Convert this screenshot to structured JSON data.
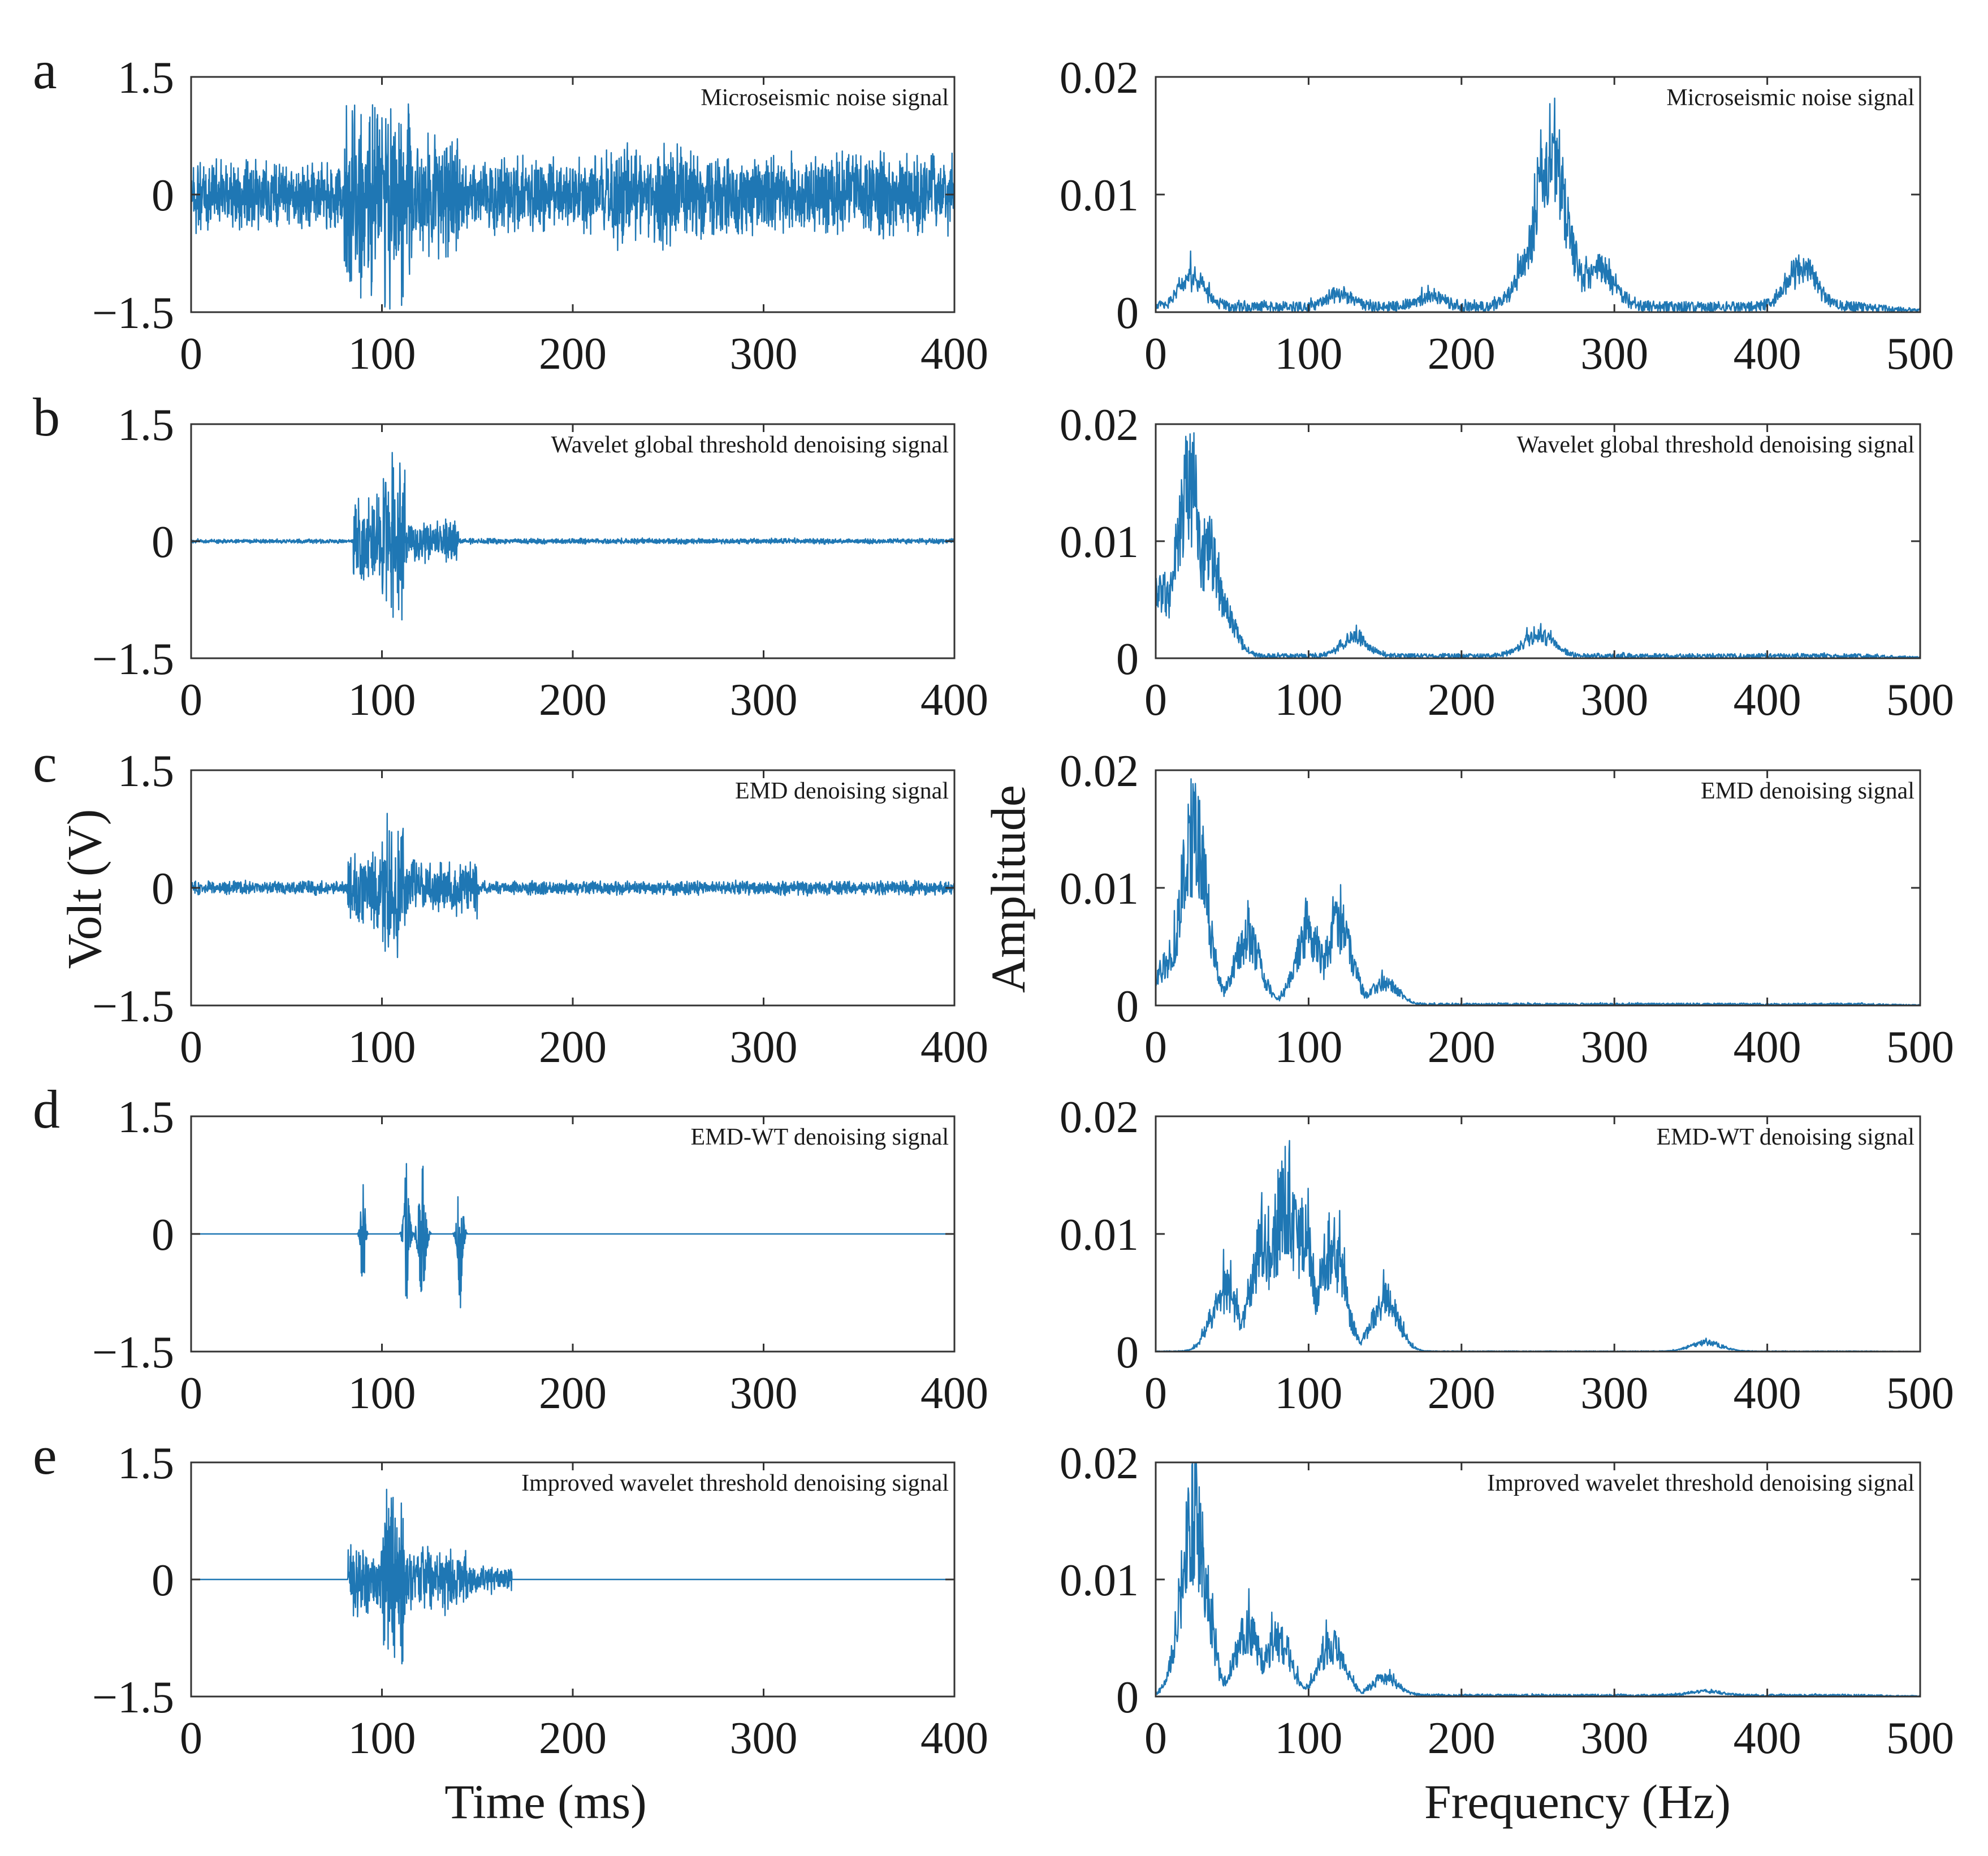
{
  "figure": {
    "time_axis_title": "Time (ms)",
    "freq_axis_title": "Frequency (Hz)",
    "volt_axis_title": "Volt (V)",
    "amp_axis_title": "Amplitude",
    "colors": {
      "trace": "#1f77b4",
      "frame": "#333333",
      "text": "#1a1a1a"
    }
  },
  "chart_data": [
    {
      "panel": "a",
      "side": "time",
      "type": "line",
      "legend": "Microseismic noise signal",
      "xlabel": "Time (ms)",
      "ylabel": "Volt (V)",
      "xlim": [
        0,
        400
      ],
      "ylim": [
        -1.5,
        1.5
      ],
      "xticks": [
        "0",
        "100",
        "200",
        "300",
        "400"
      ],
      "yticks": [
        "1.5",
        "0",
        "−1.5"
      ],
      "series": [
        {
          "name": "Microseismic noise signal",
          "kind": "noise",
          "segments": [
            {
              "x": [
                0,
                80
              ],
              "amp": 0.5
            },
            {
              "x": [
                80,
                115
              ],
              "amp": 1.5
            },
            {
              "x": [
                115,
                140
              ],
              "amp": 0.9
            },
            {
              "x": [
                140,
                220
              ],
              "amp": 0.55
            },
            {
              "x": [
                220,
                260
              ],
              "amp": 0.75
            },
            {
              "x": [
                260,
                400
              ],
              "amp": 0.6
            }
          ]
        }
      ]
    },
    {
      "panel": "a",
      "side": "freq",
      "type": "line",
      "legend": "Microseismic noise signal",
      "xlabel": "Frequency (Hz)",
      "ylabel": "Amplitude",
      "xlim": [
        0,
        500
      ],
      "ylim": [
        0,
        0.02
      ],
      "xticks": [
        "0",
        "100",
        "200",
        "300",
        "400",
        "500"
      ],
      "yticks": [
        "0.02",
        "0.01",
        "0"
      ],
      "series": [
        {
          "name": "Microseismic noise signal",
          "kind": "spectrum",
          "peaks": [
            {
              "f": 24,
              "a": 0.0035
            },
            {
              "f": 120,
              "a": 0.0015
            },
            {
              "f": 180,
              "a": 0.0012
            },
            {
              "f": 258,
              "a": 0.0185
            },
            {
              "f": 263,
              "a": 0.012
            },
            {
              "f": 248,
              "a": 0.0065
            },
            {
              "f": 290,
              "a": 0.0045
            },
            {
              "f": 423,
              "a": 0.0045
            }
          ],
          "floor": 0.0009
        }
      ]
    },
    {
      "panel": "b",
      "side": "time",
      "type": "line",
      "legend": "Wavelet global threshold denoising signal",
      "xlabel": "Time (ms)",
      "ylabel": "Volt (V)",
      "xlim": [
        0,
        400
      ],
      "ylim": [
        -1.5,
        1.5
      ],
      "xticks": [
        "0",
        "100",
        "200",
        "300",
        "400"
      ],
      "yticks": [
        "1.5",
        "0",
        "−1.5"
      ],
      "series": [
        {
          "name": "Wavelet global threshold denoising signal",
          "kind": "noise",
          "segments": [
            {
              "x": [
                0,
                85
              ],
              "amp": 0.03
            },
            {
              "x": [
                85,
                100
              ],
              "amp": 0.65
            },
            {
              "x": [
                100,
                112
              ],
              "amp": 1.2
            },
            {
              "x": [
                112,
                140
              ],
              "amp": 0.3
            },
            {
              "x": [
                140,
                400
              ],
              "amp": 0.04
            }
          ]
        }
      ]
    },
    {
      "panel": "b",
      "side": "freq",
      "type": "line",
      "legend": "Wavelet global threshold denoising signal",
      "xlabel": "Frequency (Hz)",
      "ylabel": "Amplitude",
      "xlim": [
        0,
        500
      ],
      "ylim": [
        0,
        0.02
      ],
      "xticks": [
        "0",
        "100",
        "200",
        "300",
        "400",
        "500"
      ],
      "yticks": [
        "0.02",
        "0.01",
        "0"
      ],
      "series": [
        {
          "name": "Wavelet global threshold denoising signal",
          "kind": "spectrum",
          "peaks": [
            {
              "f": 22,
              "a": 0.0195
            },
            {
              "f": 35,
              "a": 0.012
            },
            {
              "f": 42,
              "a": 0.0065
            },
            {
              "f": 4,
              "a": 0.0075
            },
            {
              "f": 130,
              "a": 0.0022
            },
            {
              "f": 250,
              "a": 0.0024
            }
          ],
          "floor": 0.0004
        }
      ]
    },
    {
      "panel": "c",
      "side": "time",
      "type": "line",
      "legend": "EMD denoising signal",
      "xlabel": "Time (ms)",
      "ylabel": "Volt (V)",
      "xlim": [
        0,
        400
      ],
      "ylim": [
        -1.5,
        1.5
      ],
      "xticks": [
        "0",
        "100",
        "200",
        "300",
        "400"
      ],
      "yticks": [
        "1.5",
        "0",
        "−1.5"
      ],
      "series": [
        {
          "name": "EMD denoising signal",
          "kind": "noise",
          "segments": [
            {
              "x": [
                0,
                82
              ],
              "amp": 0.1
            },
            {
              "x": [
                82,
                100
              ],
              "amp": 0.6
            },
            {
              "x": [
                100,
                112
              ],
              "amp": 1.1
            },
            {
              "x": [
                112,
                150
              ],
              "amp": 0.4
            },
            {
              "x": [
                150,
                400
              ],
              "amp": 0.1
            }
          ]
        }
      ]
    },
    {
      "panel": "c",
      "side": "freq",
      "type": "line",
      "legend": "EMD denoising signal",
      "xlabel": "Frequency (Hz)",
      "ylabel": "Amplitude",
      "xlim": [
        0,
        500
      ],
      "ylim": [
        0,
        0.02
      ],
      "xticks": [
        "0",
        "100",
        "200",
        "300",
        "400",
        "500"
      ],
      "yticks": [
        "0.02",
        "0.01",
        "0"
      ],
      "series": [
        {
          "name": "EMD denoising signal",
          "kind": "spectrum",
          "peaks": [
            {
              "f": 25,
              "a": 0.02
            },
            {
              "f": 8,
              "a": 0.0045
            },
            {
              "f": 60,
              "a": 0.0075
            },
            {
              "f": 100,
              "a": 0.0085
            },
            {
              "f": 120,
              "a": 0.009
            },
            {
              "f": 150,
              "a": 0.0025
            }
          ],
          "floor": 0.0002
        }
      ]
    },
    {
      "panel": "d",
      "side": "time",
      "type": "line",
      "legend": "EMD-WT denoising signal",
      "xlabel": "Time (ms)",
      "ylabel": "Volt (V)",
      "xlim": [
        0,
        400
      ],
      "ylim": [
        -1.5,
        1.5
      ],
      "xticks": [
        "0",
        "100",
        "200",
        "300",
        "400"
      ],
      "yticks": [
        "1.5",
        "0",
        "−1.5"
      ],
      "series": [
        {
          "name": "EMD-WT denoising signal",
          "kind": "bursts",
          "bursts": [
            {
              "t": 90,
              "amp": 0.65,
              "w": 3
            },
            {
              "t": 113,
              "amp": 0.75,
              "w": 4
            },
            {
              "t": 121,
              "amp": 0.9,
              "w": 5
            },
            {
              "t": 141,
              "amp": 0.75,
              "w": 4
            }
          ]
        }
      ]
    },
    {
      "panel": "d",
      "side": "freq",
      "type": "line",
      "legend": "EMD-WT denoising signal",
      "xlabel": "Frequency (Hz)",
      "ylabel": "Amplitude",
      "xlim": [
        0,
        500
      ],
      "ylim": [
        0,
        0.02
      ],
      "xticks": [
        "0",
        "100",
        "200",
        "300",
        "400",
        "500"
      ],
      "yticks": [
        "0.02",
        "0.01",
        "0"
      ],
      "series": [
        {
          "name": "EMD-WT denoising signal",
          "kind": "spectrum",
          "peaks": [
            {
              "f": 85,
              "a": 0.0175
            },
            {
              "f": 95,
              "a": 0.0135
            },
            {
              "f": 70,
              "a": 0.012
            },
            {
              "f": 115,
              "a": 0.012
            },
            {
              "f": 45,
              "a": 0.007
            },
            {
              "f": 150,
              "a": 0.006
            },
            {
              "f": 360,
              "a": 0.001
            }
          ],
          "floor": 5e-05
        }
      ]
    },
    {
      "panel": "e",
      "side": "time",
      "type": "line",
      "legend": "Improved wavelet threshold denoising signal",
      "xlabel": "Time (ms)",
      "ylabel": "Volt (V)",
      "xlim": [
        0,
        400
      ],
      "ylim": [
        -1.5,
        1.5
      ],
      "xticks": [
        "0",
        "100",
        "200",
        "300",
        "400"
      ],
      "yticks": [
        "1.5",
        "0",
        "−1.5"
      ],
      "series": [
        {
          "name": "Improved wavelet threshold denoising signal",
          "kind": "noise",
          "segments": [
            {
              "x": [
                0,
                82
              ],
              "amp": 0.0
            },
            {
              "x": [
                82,
                100
              ],
              "amp": 0.55
            },
            {
              "x": [
                100,
                112
              ],
              "amp": 1.2
            },
            {
              "x": [
                112,
                145
              ],
              "amp": 0.45
            },
            {
              "x": [
                145,
                168
              ],
              "amp": 0.2
            },
            {
              "x": [
                168,
                400
              ],
              "amp": 0.0
            }
          ]
        }
      ]
    },
    {
      "panel": "e",
      "side": "freq",
      "type": "line",
      "legend": "Improved wavelet threshold denoising signal",
      "xlabel": "Frequency (Hz)",
      "ylabel": "Amplitude",
      "xlim": [
        0,
        500
      ],
      "ylim": [
        0,
        0.02
      ],
      "xticks": [
        "0",
        "100",
        "200",
        "300",
        "400",
        "500"
      ],
      "yticks": [
        "0.02",
        "0.01",
        "0"
      ],
      "series": [
        {
          "name": "Improved wavelet threshold denoising signal",
          "kind": "spectrum",
          "peaks": [
            {
              "f": 25,
              "a": 0.02
            },
            {
              "f": 60,
              "a": 0.0075
            },
            {
              "f": 80,
              "a": 0.0065
            },
            {
              "f": 115,
              "a": 0.006
            },
            {
              "f": 150,
              "a": 0.002
            },
            {
              "f": 360,
              "a": 0.0005
            }
          ],
          "floor": 0.0002
        }
      ]
    }
  ]
}
